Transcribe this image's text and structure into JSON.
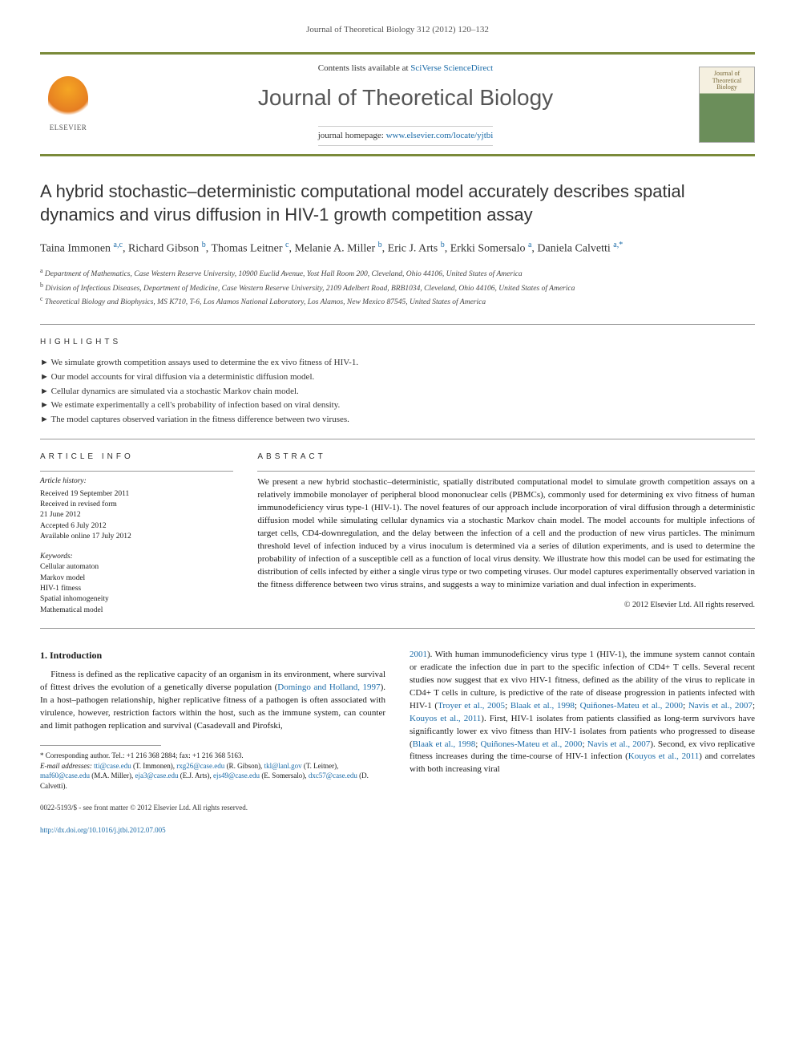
{
  "running_head": "Journal of Theoretical Biology 312 (2012) 120–132",
  "banner": {
    "elsevier": "ELSEVIER",
    "contents_prefix": "Contents lists available at ",
    "contents_link": "SciVerse ScienceDirect",
    "journal_name": "Journal of Theoretical Biology",
    "homepage_prefix": "journal homepage: ",
    "homepage_url": "www.elsevier.com/locate/yjtbi",
    "cover_line1": "Journal of",
    "cover_line2": "Theoretical",
    "cover_line3": "Biology"
  },
  "title": "A hybrid stochastic–deterministic computational model accurately describes spatial dynamics and virus diffusion in HIV-1 growth competition assay",
  "authors_html": "Taina Immonen <sup>a,c</sup>, Richard Gibson <sup>b</sup>, Thomas Leitner <sup>c</sup>, Melanie A. Miller <sup>b</sup>, Eric J. Arts <sup>b</sup>, Erkki Somersalo <sup>a</sup>, Daniela Calvetti <sup>a,*</sup>",
  "affiliations": [
    "a Department of Mathematics, Case Western Reserve University, 10900 Euclid Avenue, Yost Hall Room 200, Cleveland, Ohio 44106, United States of America",
    "b Division of Infectious Diseases, Department of Medicine, Case Western Reserve University, 2109 Adelbert Road, BRB1034, Cleveland, Ohio 44106, United States of America",
    "c Theoretical Biology and Biophysics, MS K710, T-6, Los Alamos National Laboratory, Los Alamos, New Mexico 87545, United States of America"
  ],
  "highlights_label": "HIGHLIGHTS",
  "highlights": [
    "We simulate growth competition assays used to determine the ex vivo fitness of HIV-1.",
    "Our model accounts for viral diffusion via a deterministic diffusion model.",
    "Cellular dynamics are simulated via a stochastic Markov chain model.",
    "We estimate experimentally a cell's probability of infection based on viral density.",
    "The model captures observed variation in the fitness difference between two viruses."
  ],
  "article_info_label": "ARTICLE INFO",
  "article_history_label": "Article history:",
  "article_history": [
    "Received 19 September 2011",
    "Received in revised form",
    "21 June 2012",
    "Accepted 6 July 2012",
    "Available online 17 July 2012"
  ],
  "keywords_label": "Keywords:",
  "keywords": [
    "Cellular automaton",
    "Markov model",
    "HIV-1 fitness",
    "Spatial inhomogeneity",
    "Mathematical model"
  ],
  "abstract_label": "ABSTRACT",
  "abstract": "We present a new hybrid stochastic–deterministic, spatially distributed computational model to simulate growth competition assays on a relatively immobile monolayer of peripheral blood mononuclear cells (PBMCs), commonly used for determining ex vivo fitness of human immunodeficiency virus type-1 (HIV-1). The novel features of our approach include incorporation of viral diffusion through a deterministic diffusion model while simulating cellular dynamics via a stochastic Markov chain model. The model accounts for multiple infections of target cells, CD4-downregulation, and the delay between the infection of a cell and the production of new virus particles. The minimum threshold level of infection induced by a virus inoculum is determined via a series of dilution experiments, and is used to determine the probability of infection of a susceptible cell as a function of local virus density. We illustrate how this model can be used for estimating the distribution of cells infected by either a single virus type or two competing viruses. Our model captures experimentally observed variation in the fitness difference between two virus strains, and suggests a way to minimize variation and dual infection in experiments.",
  "copyright": "© 2012 Elsevier Ltd. All rights reserved.",
  "intro_heading": "1.  Introduction",
  "intro_col1": "Fitness is defined as the replicative capacity of an organism in its environment, where survival of fittest drives the evolution of a genetically diverse population (Domingo and Holland, 1997). In a host–pathogen relationship, higher replicative fitness of a pathogen is often associated with virulence, however, restriction factors within the host, such as the immune system, can counter and limit pathogen replication and survival (Casadevall and Pirofski,",
  "intro_col2": "2001). With human immunodeficiency virus type 1 (HIV-1), the immune system cannot contain or eradicate the infection due in part to the specific infection of CD4+ T cells. Several recent studies now suggest that ex vivo HIV-1 fitness, defined as the ability of the virus to replicate in CD4+ T cells in culture, is predictive of the rate of disease progression in patients infected with HIV-1 (Troyer et al., 2005; Blaak et al., 1998; Quiñones-Mateu et al., 2000; Navis et al., 2007; Kouyos et al., 2011). First, HIV-1 isolates from patients classified as long-term survivors have significantly lower ex vivo fitness than HIV-1 isolates from patients who progressed to disease (Blaak et al., 1998; Quiñones-Mateu et al., 2000; Navis et al., 2007). Second, ex vivo replicative fitness increases during the time-course of HIV-1 infection (Kouyos et al., 2011) and correlates with both increasing viral",
  "corr_author": "* Corresponding author. Tel.: +1 216 368 2884; fax: +1 216 368 5163.",
  "emails_label": "E-mail addresses: ",
  "emails": "tti@case.edu (T. Immonen), rxg26@case.edu (R. Gibson), tkl@lanl.gov (T. Leitner), maf60@case.edu (M.A. Miller), eja3@case.edu (E.J. Arts), ejs49@case.edu (E. Somersalo), dxc57@case.edu (D. Calvetti).",
  "footer_issn": "0022-5193/$ - see front matter © 2012 Elsevier Ltd. All rights reserved.",
  "footer_doi": "http://dx.doi.org/10.1016/j.jtbi.2012.07.005",
  "colors": {
    "accent": "#7a8a3a",
    "link": "#1a6ba8",
    "text": "#1a1a1a",
    "muted": "#555555"
  }
}
